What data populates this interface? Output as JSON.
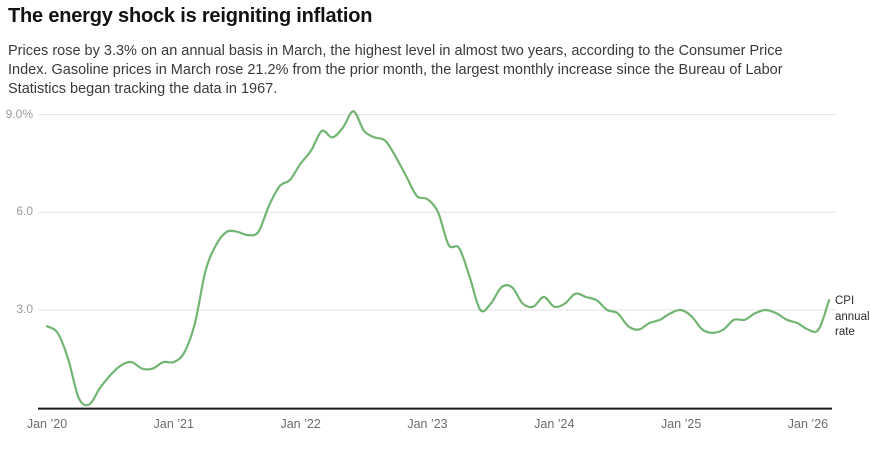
{
  "header": {
    "title": "The energy shock is reigniting inflation",
    "dek_lines": [
      "Prices rose by 3.3% on an annual basis in March, the highest level in almost two years, according to the Consumer Price",
      "Index. Gasoline prices in March rose 21.2% from the prior month, the largest monthly increase since the Bureau of Labor",
      "Statistics began tracking the data in 1967."
    ]
  },
  "chart_data": {
    "type": "line",
    "title": "The energy shock is reigniting inflation",
    "x_unit": "month",
    "x_range": "Jan 2020 - Mar 2026",
    "y_unit": "CPI, percent change from a year earlier",
    "ylim": [
      0,
      9.4
    ],
    "grid": "horizontal gridlines only",
    "legend_position": "end-of-line label, right side",
    "line_color": "#72b572",
    "grid_color": "#e3e3e3",
    "axis_color": "#1c1c1c",
    "end_label": "CPI annual rate",
    "y_ticks": [
      {
        "value": 9.0,
        "label": "9.0%"
      },
      {
        "value": 6.0,
        "label": "6.0"
      },
      {
        "value": 3.0,
        "label": "3.0"
      }
    ],
    "x_ticks": [
      {
        "month_index": 0,
        "label": "Jan ’20"
      },
      {
        "month_index": 12,
        "label": "Jan ’21"
      },
      {
        "month_index": 24,
        "label": "Jan ’22"
      },
      {
        "month_index": 36,
        "label": "Jan ’23"
      },
      {
        "month_index": 48,
        "label": "Jan ’24"
      },
      {
        "month_index": 60,
        "label": "Jan ’25"
      },
      {
        "month_index": 72,
        "label": "Jan ’26"
      }
    ],
    "series": [
      {
        "name": "CPI annual rate",
        "cadence": "monthly, Jan through Dec (2026 is Jan-Mar)",
        "values_by_year": {
          "2020": [
            2.5,
            2.3,
            1.5,
            0.3,
            0.1,
            0.6,
            1.0,
            1.3,
            1.4,
            1.2,
            1.2,
            1.4
          ],
          "2021": [
            1.4,
            1.7,
            2.6,
            4.2,
            5.0,
            5.4,
            5.4,
            5.3,
            5.4,
            6.2,
            6.8,
            7.0
          ],
          "2022": [
            7.5,
            7.9,
            8.5,
            8.3,
            8.6,
            9.1,
            8.5,
            8.3,
            8.2,
            7.7,
            7.1,
            6.5
          ],
          "2023": [
            6.4,
            6.0,
            5.0,
            4.9,
            4.0,
            3.0,
            3.2,
            3.7,
            3.7,
            3.2,
            3.1,
            3.4
          ],
          "2024": [
            3.1,
            3.2,
            3.5,
            3.4,
            3.3,
            3.0,
            2.9,
            2.5,
            2.4,
            2.6,
            2.7,
            2.9
          ],
          "2025": [
            3.0,
            2.8,
            2.4,
            2.3,
            2.4,
            2.7,
            2.7,
            2.9,
            3.0,
            2.9,
            2.7,
            2.6
          ],
          "2026": [
            2.4,
            2.4,
            3.3
          ]
        }
      }
    ]
  }
}
